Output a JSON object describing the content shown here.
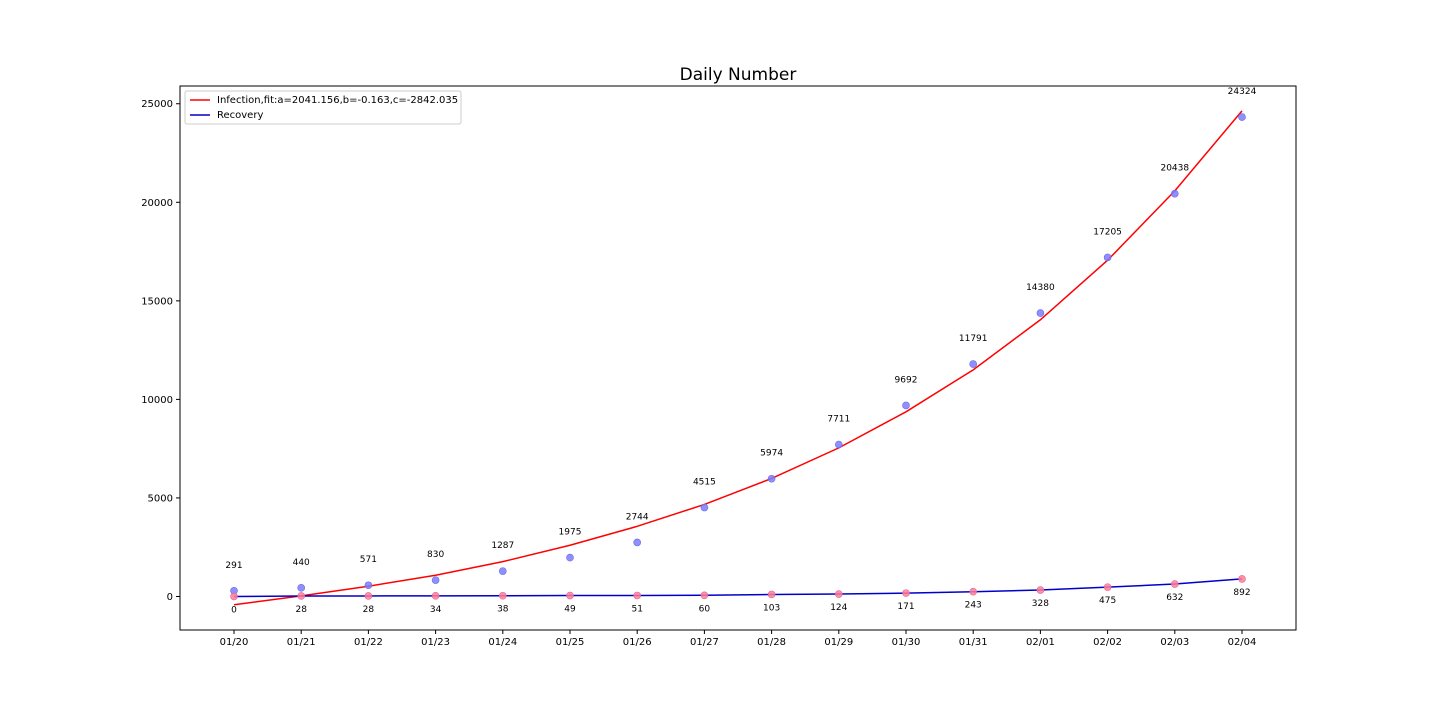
{
  "chart_data": {
    "type": "line",
    "title": "Daily Number",
    "xlabel": "",
    "ylabel": "",
    "categories": [
      "01/20",
      "01/21",
      "01/22",
      "01/23",
      "01/24",
      "01/25",
      "01/26",
      "01/27",
      "01/28",
      "01/29",
      "01/30",
      "01/31",
      "02/01",
      "02/02",
      "02/03",
      "02/04"
    ],
    "ylim": [
      -1700,
      25900
    ],
    "yticks": [
      0,
      5000,
      10000,
      15000,
      20000,
      25000
    ],
    "grid": false,
    "legend_position": "top-left",
    "series": [
      {
        "name": "Infection,fit:a=2041.156,b=-0.163,c=-2842.035",
        "color": "#ff0000",
        "kind": "fit-line",
        "values": [
          -420,
          30,
          520,
          1080,
          1770,
          2600,
          3560,
          4670,
          5990,
          7540,
          9370,
          11500,
          14040,
          17060,
          20580,
          24640
        ]
      },
      {
        "name": "Recovery",
        "color": "#0000cc",
        "kind": "line",
        "values": [
          0,
          28,
          28,
          34,
          38,
          49,
          51,
          60,
          103,
          124,
          171,
          243,
          328,
          475,
          632,
          892
        ]
      }
    ],
    "infection_points": {
      "color": "#7b7bff",
      "values": [
        291,
        440,
        571,
        830,
        1287,
        1975,
        2744,
        4515,
        5974,
        7711,
        9692,
        11791,
        14380,
        17205,
        20438,
        24324
      ],
      "labels": [
        "291",
        "440",
        "571",
        "830",
        "1287",
        "1975",
        "2744",
        "4515",
        "5974",
        "7711",
        "9692",
        "11791",
        "14380",
        "17205",
        "20438",
        "24324"
      ]
    },
    "recovery_points": {
      "color": "#ff7b9c",
      "values": [
        0,
        28,
        28,
        34,
        38,
        49,
        51,
        60,
        103,
        124,
        171,
        243,
        328,
        475,
        632,
        892
      ],
      "labels": [
        "0",
        "28",
        "28",
        "34",
        "38",
        "49",
        "51",
        "60",
        "103",
        "124",
        "171",
        "243",
        "328",
        "475",
        "632",
        "892"
      ]
    }
  }
}
